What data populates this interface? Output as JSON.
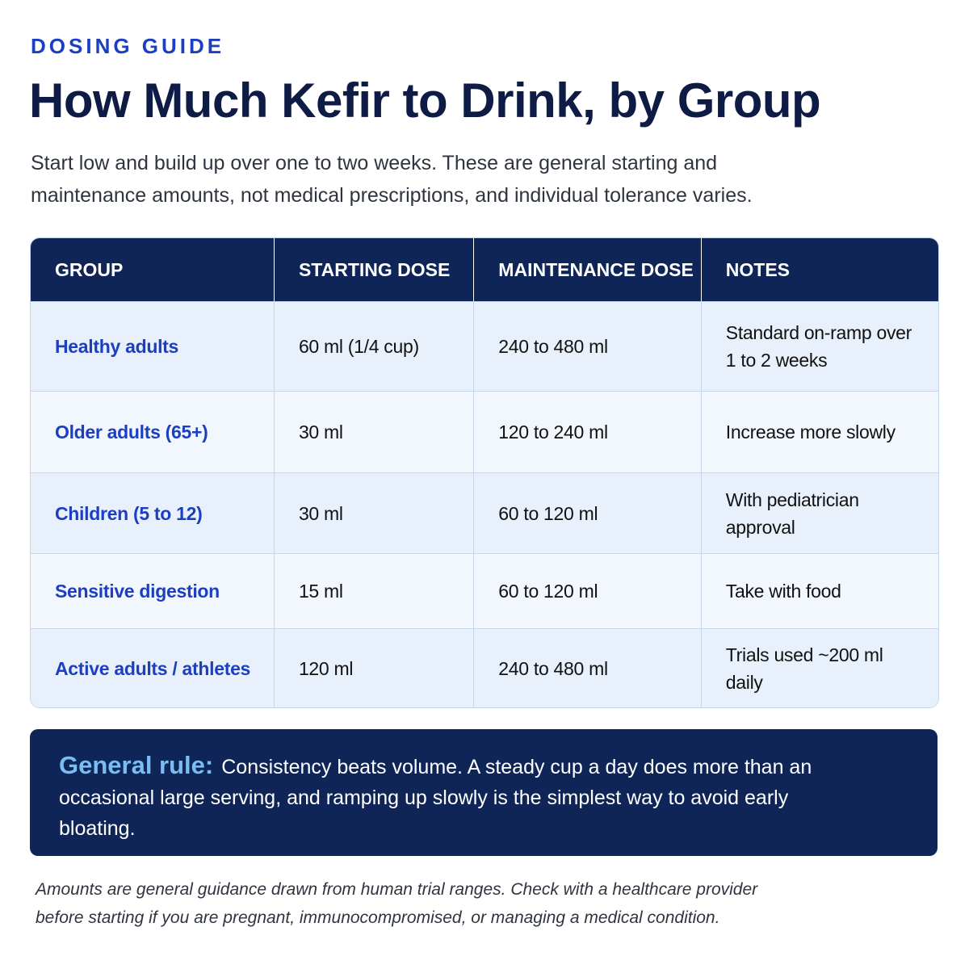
{
  "eyebrow": "DOSING GUIDE",
  "title": "How Much Kefir to Drink, by Group",
  "subtitle": "Start low and build up over one to two weeks. These are general starting and maintenance amounts, not medical prescriptions, and individual tolerance varies.",
  "table": {
    "headers": [
      "GROUP",
      "STARTING DOSE",
      "MAINTENANCE DOSE",
      "NOTES"
    ],
    "rows": [
      [
        "Healthy adults",
        "60 ml (1/4 cup)",
        "240 to 480 ml",
        "Standard on-ramp over 1 to 2 weeks"
      ],
      [
        "Older adults (65+)",
        "30 ml",
        "120 to 240 ml",
        "Increase more slowly"
      ],
      [
        "Children (5 to 12)",
        "30 ml",
        "60 to 120 ml",
        "With pediatrician approval"
      ],
      [
        "Sensitive digestion",
        "15 ml",
        "60 to 120 ml",
        "Take with food"
      ],
      [
        "Active adults / athletes",
        "120 ml",
        "240 to 480 ml",
        "Trials used ~200 ml daily"
      ]
    ]
  },
  "rule": {
    "label": "General rule:",
    "text": "Consistency beats volume. A steady cup a day does more than an occasional large serving, and ramping up slowly is the simplest way to avoid early bloating."
  },
  "footnote": "Amounts are general guidance drawn from human trial ranges. Check with a healthcare provider before starting if you are pregnant, immunocompromised, or managing a medical condition."
}
